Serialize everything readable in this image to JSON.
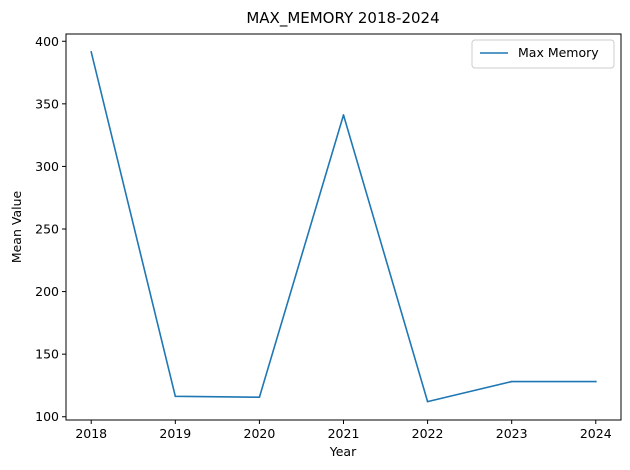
{
  "chart_data": {
    "type": "line",
    "title": "MAX_MEMORY 2018-2024",
    "xlabel": "Year",
    "ylabel": "Mean Value",
    "x": [
      2018,
      2019,
      2020,
      2021,
      2022,
      2023,
      2024
    ],
    "x_tick_labels": [
      "2018",
      "2019",
      "2020",
      "2021",
      "2022",
      "2023",
      "2024"
    ],
    "y_ticks": [
      100,
      150,
      200,
      250,
      300,
      350,
      400
    ],
    "y_tick_labels": [
      "100",
      "150",
      "200",
      "250",
      "300",
      "350",
      "400"
    ],
    "xlim": [
      2017.7,
      2024.3
    ],
    "ylim": [
      97.4,
      405.8
    ],
    "grid": false,
    "legend_position": "top-right",
    "series": [
      {
        "name": "Max Memory",
        "color": "#1f77b4",
        "values": [
          391.4,
          116.3,
          115.6,
          341.1,
          112.1,
          128.1,
          128.1
        ]
      }
    ]
  }
}
